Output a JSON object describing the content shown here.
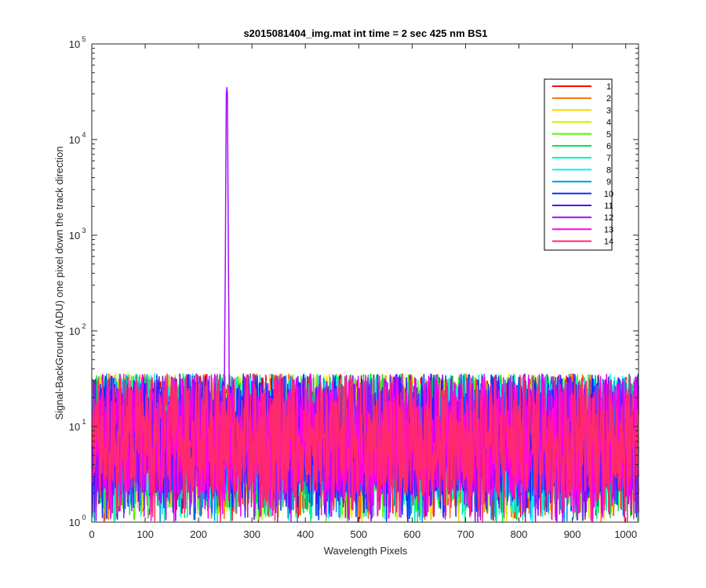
{
  "chart_data": {
    "type": "line",
    "title": "s2015081404_img.mat int time = 2 sec  425 nm BS1",
    "xlabel": "Wavelength Pixels",
    "ylabel": "Signal-BackGround (ADU) one pixel down the track direction",
    "xlim": [
      0,
      1024
    ],
    "ylim": [
      1,
      100000
    ],
    "yscale": "log",
    "x_ticks": [
      "0",
      "100",
      "200",
      "300",
      "400",
      "500",
      "600",
      "700",
      "800",
      "900",
      "1000"
    ],
    "x_tick_values": [
      0,
      100,
      200,
      300,
      400,
      500,
      600,
      700,
      800,
      900,
      1000
    ],
    "y_ticks": [
      {
        "base": "10",
        "exp": "0",
        "value": 1
      },
      {
        "base": "10",
        "exp": "1",
        "value": 10
      },
      {
        "base": "10",
        "exp": "2",
        "value": 100
      },
      {
        "base": "10",
        "exp": "3",
        "value": 1000
      },
      {
        "base": "10",
        "exp": "4",
        "value": 10000
      },
      {
        "base": "10",
        "exp": "5",
        "value": 100000
      }
    ],
    "grid": false,
    "legend_position": "top-right",
    "noise_floor": {
      "typical_range": [
        1,
        50
      ],
      "description": "noise between about 1 and 50 ADU across all pixels for all series"
    },
    "peak": {
      "series": "12",
      "x": 253,
      "y": 35000
    },
    "series": [
      {
        "name": "1",
        "color": "#ff0000"
      },
      {
        "name": "2",
        "color": "#ff6a00"
      },
      {
        "name": "3",
        "color": "#ffd400"
      },
      {
        "name": "4",
        "color": "#c8f000"
      },
      {
        "name": "5",
        "color": "#4cff00"
      },
      {
        "name": "6",
        "color": "#00e84a"
      },
      {
        "name": "7",
        "color": "#00f0a8"
      },
      {
        "name": "8",
        "color": "#00f5f0"
      },
      {
        "name": "9",
        "color": "#0096e6"
      },
      {
        "name": "10",
        "color": "#0032ff"
      },
      {
        "name": "11",
        "color": "#4a14ff"
      },
      {
        "name": "12",
        "color": "#a010ff"
      },
      {
        "name": "13",
        "color": "#ff00e6"
      },
      {
        "name": "14",
        "color": "#ff2a6e"
      }
    ]
  }
}
